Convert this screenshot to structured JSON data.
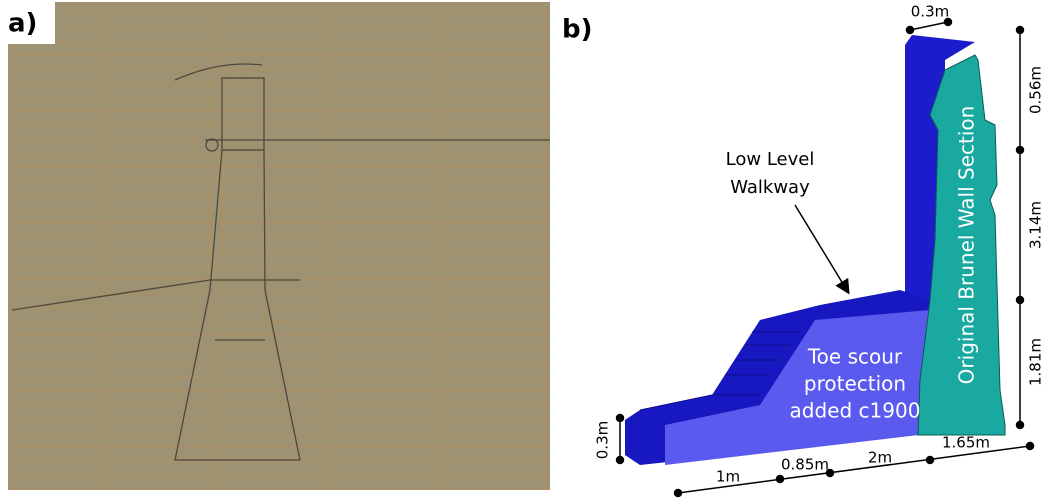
{
  "panel_a": {
    "label": "a)"
  },
  "panel_b": {
    "label": "b)",
    "callout": {
      "line1": "Low Level",
      "line2": "Walkway"
    },
    "wall_label": "Original Brunel Wall Section",
    "toe_label": {
      "line1": "Toe scour",
      "line2": "protection",
      "line3": "added c1900"
    },
    "dimensions": {
      "top_width": "0.3m",
      "upper_height": "0.56m",
      "middle_height": "3.14m",
      "lower_height": "1.81m",
      "base_height": "0.3m",
      "base_segments": [
        "1m",
        "0.85m",
        "2m",
        "1.65m"
      ]
    }
  }
}
